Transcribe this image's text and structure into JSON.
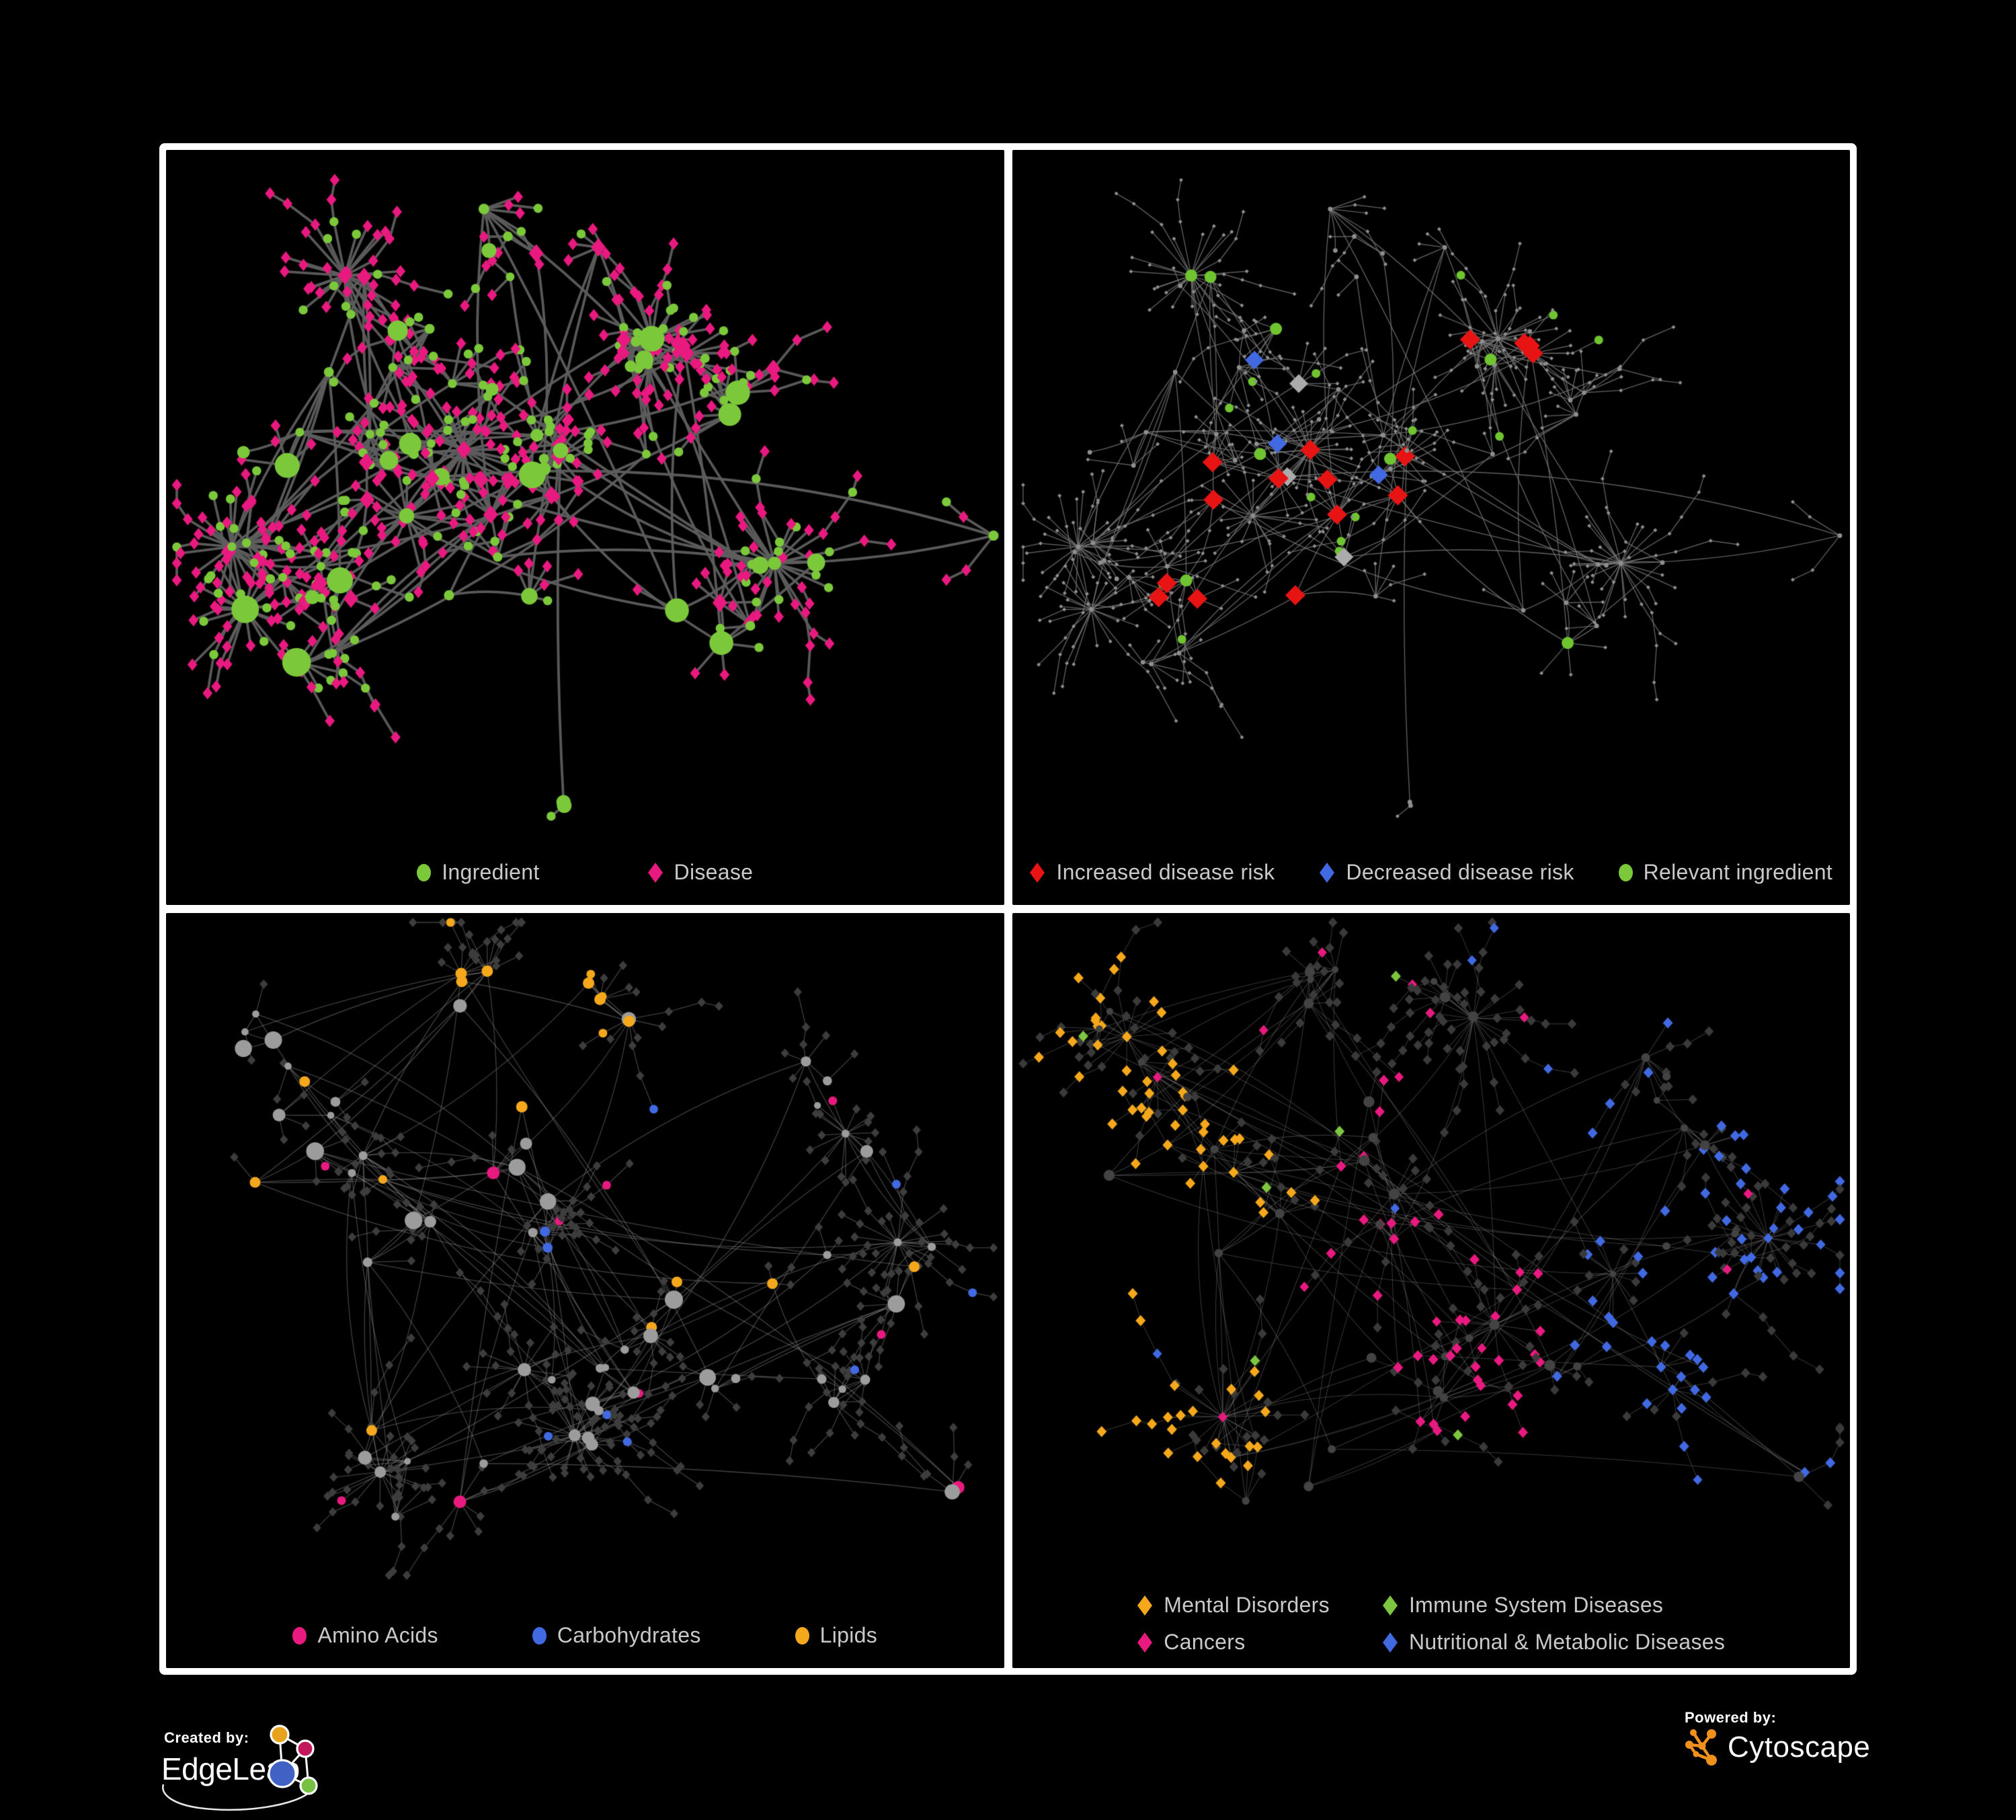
{
  "credits": {
    "created_by": "Created by:",
    "edgeleap": "EdgeLeap",
    "powered_by": "Powered by:",
    "cytoscape": "Cytoscape"
  },
  "colors": {
    "background": "#000000",
    "frame": "#ffffff",
    "legend_text": "#C9C9C9",
    "green": "#7CC83B",
    "pink": "#E8197F",
    "red": "#E81414",
    "blue": "#4169E1",
    "orange": "#F5A81C",
    "lime": "#7DC63F",
    "silver": "#ABABAB",
    "cytoscape_orange": "#F0911E"
  },
  "panels": [
    {
      "id": "ingredient-disease",
      "legend_style": "gap-xl",
      "legend": [
        {
          "label": "Ingredient",
          "shape": "circle",
          "color": "#7CC83B"
        },
        {
          "label": "Disease",
          "shape": "diamond",
          "color": "#E8197F"
        }
      ],
      "net": {
        "seed": 11,
        "clusters": 30,
        "extraEdges": 36,
        "maxLeaves": 11,
        "bigFanProb": 0.05,
        "bigFanMin": 10,
        "bigFanVar": 16,
        "leafR": [
          28,
          42
        ],
        "chainProb": 0.22,
        "bottomPad": 118,
        "edge": {
          "color": "#5E5E5E",
          "alpha": 0.95,
          "width": 3.8
        },
        "hub": {
          "shape": "circle",
          "color": "#7CC83B",
          "size": [
            6.5,
            15,
            2.6
          ]
        },
        "leaf": {
          "shape": "diamond",
          "color": "#E8197F",
          "size": [
            7.4,
            0,
            1
          ]
        },
        "diamondV": 1.25,
        "rules": [
          {
            "target": "hub",
            "region": [
              0,
              0,
              1,
              1
            ],
            "prob": 0.24,
            "shape": "diamond",
            "color": "#E8197F",
            "size": 11
          },
          {
            "target": "leaf",
            "region": [
              0,
              0,
              1,
              1
            ],
            "prob": 0.26,
            "shape": "circle",
            "color": "#7CC83B",
            "size": 6.8
          }
        ]
      }
    },
    {
      "id": "disease-risk",
      "legend_style": "gap-md",
      "legend": [
        {
          "label": "Increased disease risk",
          "shape": "diamond",
          "color": "#E81414"
        },
        {
          "label": "Decreased disease risk",
          "shape": "diamond",
          "color": "#4169E1"
        },
        {
          "label": "Relevant ingredient",
          "shape": "circle",
          "color": "#7CC83B"
        }
      ],
      "net": {
        "seed": 11,
        "clusters": 30,
        "extraEdges": 36,
        "maxLeaves": 11,
        "bigFanProb": 0.05,
        "bigFanMin": 10,
        "bigFanVar": 16,
        "leafR": [
          28,
          42
        ],
        "chainProb": 0.22,
        "bottomPad": 118,
        "edge": {
          "color": "#767676",
          "alpha": 0.8,
          "width": 1.4
        },
        "hub": {
          "shape": "circle",
          "color": "#8E8E8E",
          "size": [
            3.4,
            0,
            1
          ]
        },
        "leaf": {
          "shape": "diamond",
          "color": "#8E8E8E",
          "size": [
            3.0,
            0,
            1
          ]
        },
        "diamondV": 1.0,
        "rules": [
          {
            "target": "hub",
            "region": [
              0.16,
              0.18,
              0.66,
              0.72
            ],
            "prob": 0.3,
            "shape": "diamond",
            "color": "#E81414",
            "size": 15
          },
          {
            "target": "hub",
            "region": [
              0.16,
              0.26,
              0.46,
              0.66
            ],
            "prob": 0.22,
            "shape": "diamond",
            "color": "#4169E1",
            "size": 14
          },
          {
            "target": "hub",
            "region": [
              0.16,
              0.18,
              0.66,
              0.72
            ],
            "prob": 0.1,
            "shape": "diamond",
            "color": "#ABABAB",
            "size": 14
          },
          {
            "target": "hub",
            "region": [
              0.8,
              0.05,
              1,
              0.32
            ],
            "prob": 0.6,
            "shape": "diamond",
            "color": "#4169E1",
            "size": 13
          },
          {
            "target": "hub",
            "region": [
              0.5,
              0.72,
              0.95,
              1
            ],
            "prob": 0.14,
            "shape": "diamond",
            "color": "#E81414",
            "size": 13
          },
          {
            "target": "hub",
            "region": [
              0.16,
              0.15,
              0.68,
              0.75
            ],
            "prob": 0.3,
            "shape": "circle",
            "color": "#6FC430",
            "size": 9
          },
          {
            "target": "leaf",
            "region": [
              0.2,
              0.2,
              0.64,
              0.7
            ],
            "prob": 0.05,
            "shape": "circle",
            "color": "#6FC430",
            "size": 6.5
          }
        ]
      }
    },
    {
      "id": "nutrient-classes",
      "legend_style": "gap-lg",
      "legend": [
        {
          "label": "Amino Acids",
          "shape": "circle",
          "color": "#E8197F"
        },
        {
          "label": "Carbohydrates",
          "shape": "circle",
          "color": "#4169E1"
        },
        {
          "label": "Lipids",
          "shape": "circle",
          "color": "#F5A81C"
        }
      ],
      "net": {
        "seed": 47,
        "clusters": 30,
        "extraEdges": 70,
        "maxLeaves": 12,
        "bigFanProb": 0.05,
        "bigFanMin": 12,
        "bigFanVar": 22,
        "leafR": [
          26,
          40
        ],
        "chainProb": 0.25,
        "bottomPad": 124,
        "edge": {
          "color": "#8E8E8E",
          "alpha": 0.45,
          "width": 1.3
        },
        "hub": {
          "shape": "circle",
          "color": "#9C9C9C",
          "size": [
            5,
            9,
            1.8
          ]
        },
        "leaf": {
          "shape": "diamond",
          "color": "#3D3D3D",
          "size": [
            6.2,
            0,
            1
          ]
        },
        "diamondV": 1.12,
        "rules": [
          {
            "target": "hub",
            "region": [
              0.24,
              0.02,
              0.62,
              0.38
            ],
            "prob": 0.5,
            "shape": "circle",
            "color": "#F5A81C",
            "size": 8.5
          },
          {
            "target": "hub",
            "region": [
              0.26,
              0.2,
              0.6,
              0.52
            ],
            "prob": 0.15,
            "shape": "circle",
            "color": "#4169E1",
            "size": 7.5
          },
          {
            "target": "any",
            "region": [
              0.24,
              0.02,
              0.62,
              0.42
            ],
            "prob": 0.09,
            "shape": "circle",
            "color": "#F5A81C",
            "size": 6.5
          },
          {
            "target": "hub",
            "region": [
              0,
              0,
              1,
              1
            ],
            "prob": 0.08,
            "shape": "circle",
            "color": "#E8197F",
            "size": 9.5
          },
          {
            "target": "hub",
            "region": [
              0,
              0,
              1,
              1
            ],
            "prob": 0.09,
            "shape": "circle",
            "color": "#F5A81C",
            "size": 8
          },
          {
            "target": "leaf",
            "region": [
              0,
              0,
              1,
              1
            ],
            "prob": 0.02,
            "shape": "circle",
            "color": "#4169E1",
            "size": 6.5
          },
          {
            "target": "leaf",
            "region": [
              0,
              0,
              1,
              1
            ],
            "prob": 0.015,
            "shape": "circle",
            "color": "#E8197F",
            "size": 6.5
          }
        ]
      }
    },
    {
      "id": "disease-classes",
      "legend_style": "legend-grid",
      "legend": [
        {
          "label": "Mental Disorders",
          "shape": "diamond",
          "color": "#F5A81C"
        },
        {
          "label": "Immune System Diseases",
          "shape": "diamond",
          "color": "#7DC63F"
        },
        {
          "label": "Cancers",
          "shape": "diamond",
          "color": "#E8197F"
        },
        {
          "label": "Nutritional & Metabolic Diseases",
          "shape": "diamond",
          "color": "#4169E1"
        }
      ],
      "net": {
        "seed": 47,
        "clusters": 30,
        "extraEdges": 70,
        "maxLeaves": 12,
        "bigFanProb": 0.05,
        "bigFanMin": 12,
        "bigFanVar": 22,
        "leafR": [
          26,
          40
        ],
        "chainProb": 0.25,
        "bottomPad": 150,
        "edge": {
          "color": "#9E9E9E",
          "alpha": 0.35,
          "width": 1.05
        },
        "hub": {
          "shape": "circle",
          "color": "#434343",
          "size": [
            4.5,
            4,
            1
          ]
        },
        "leaf": {
          "shape": "diamond",
          "color": "#3A3A3A",
          "size": [
            6.8,
            0,
            1
          ]
        },
        "diamondV": 1.1,
        "rules": [
          {
            "target": "any",
            "region": [
              0,
              0.12,
              0.34,
              0.88
            ],
            "prob": 0.5,
            "shape": "diamond",
            "color": "#F5A81C",
            "size": 7.5
          },
          {
            "target": "any",
            "region": [
              0.34,
              0.3,
              0.62,
              0.82
            ],
            "prob": 0.34,
            "shape": "diamond",
            "color": "#E8197F",
            "size": 7.5
          },
          {
            "target": "any",
            "region": [
              0.6,
              0.05,
              1,
              0.92
            ],
            "prob": 0.3,
            "shape": "diamond",
            "color": "#4169E1",
            "size": 7.5
          },
          {
            "target": "any",
            "region": [
              0,
              0,
              1,
              1
            ],
            "prob": 0.02,
            "shape": "diamond",
            "color": "#7DC63F",
            "size": 7.5
          },
          {
            "target": "any",
            "region": [
              0,
              0,
              1,
              1
            ],
            "prob": 0.035,
            "shape": "diamond",
            "color": "#E8197F",
            "size": 7
          },
          {
            "target": "any",
            "region": [
              0,
              0,
              1,
              1
            ],
            "prob": 0.03,
            "shape": "diamond",
            "color": "#4169E1",
            "size": 7
          }
        ]
      }
    }
  ]
}
